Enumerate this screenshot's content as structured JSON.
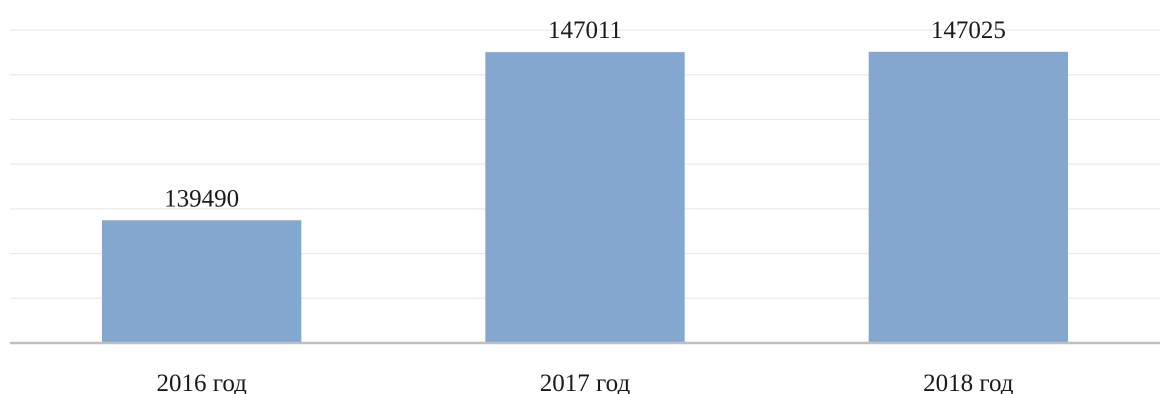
{
  "chart_data": {
    "type": "bar",
    "categories": [
      "2016 год",
      "2017 год",
      "2018 год"
    ],
    "values": [
      139490,
      147011,
      147025
    ],
    "data_labels": [
      "139490",
      "147011",
      "147025"
    ],
    "title": "",
    "xlabel": "",
    "ylabel": "",
    "ylim": [
      134000,
      148000
    ],
    "grid": true,
    "legend": "none",
    "bar_color": "#84a7cf"
  }
}
